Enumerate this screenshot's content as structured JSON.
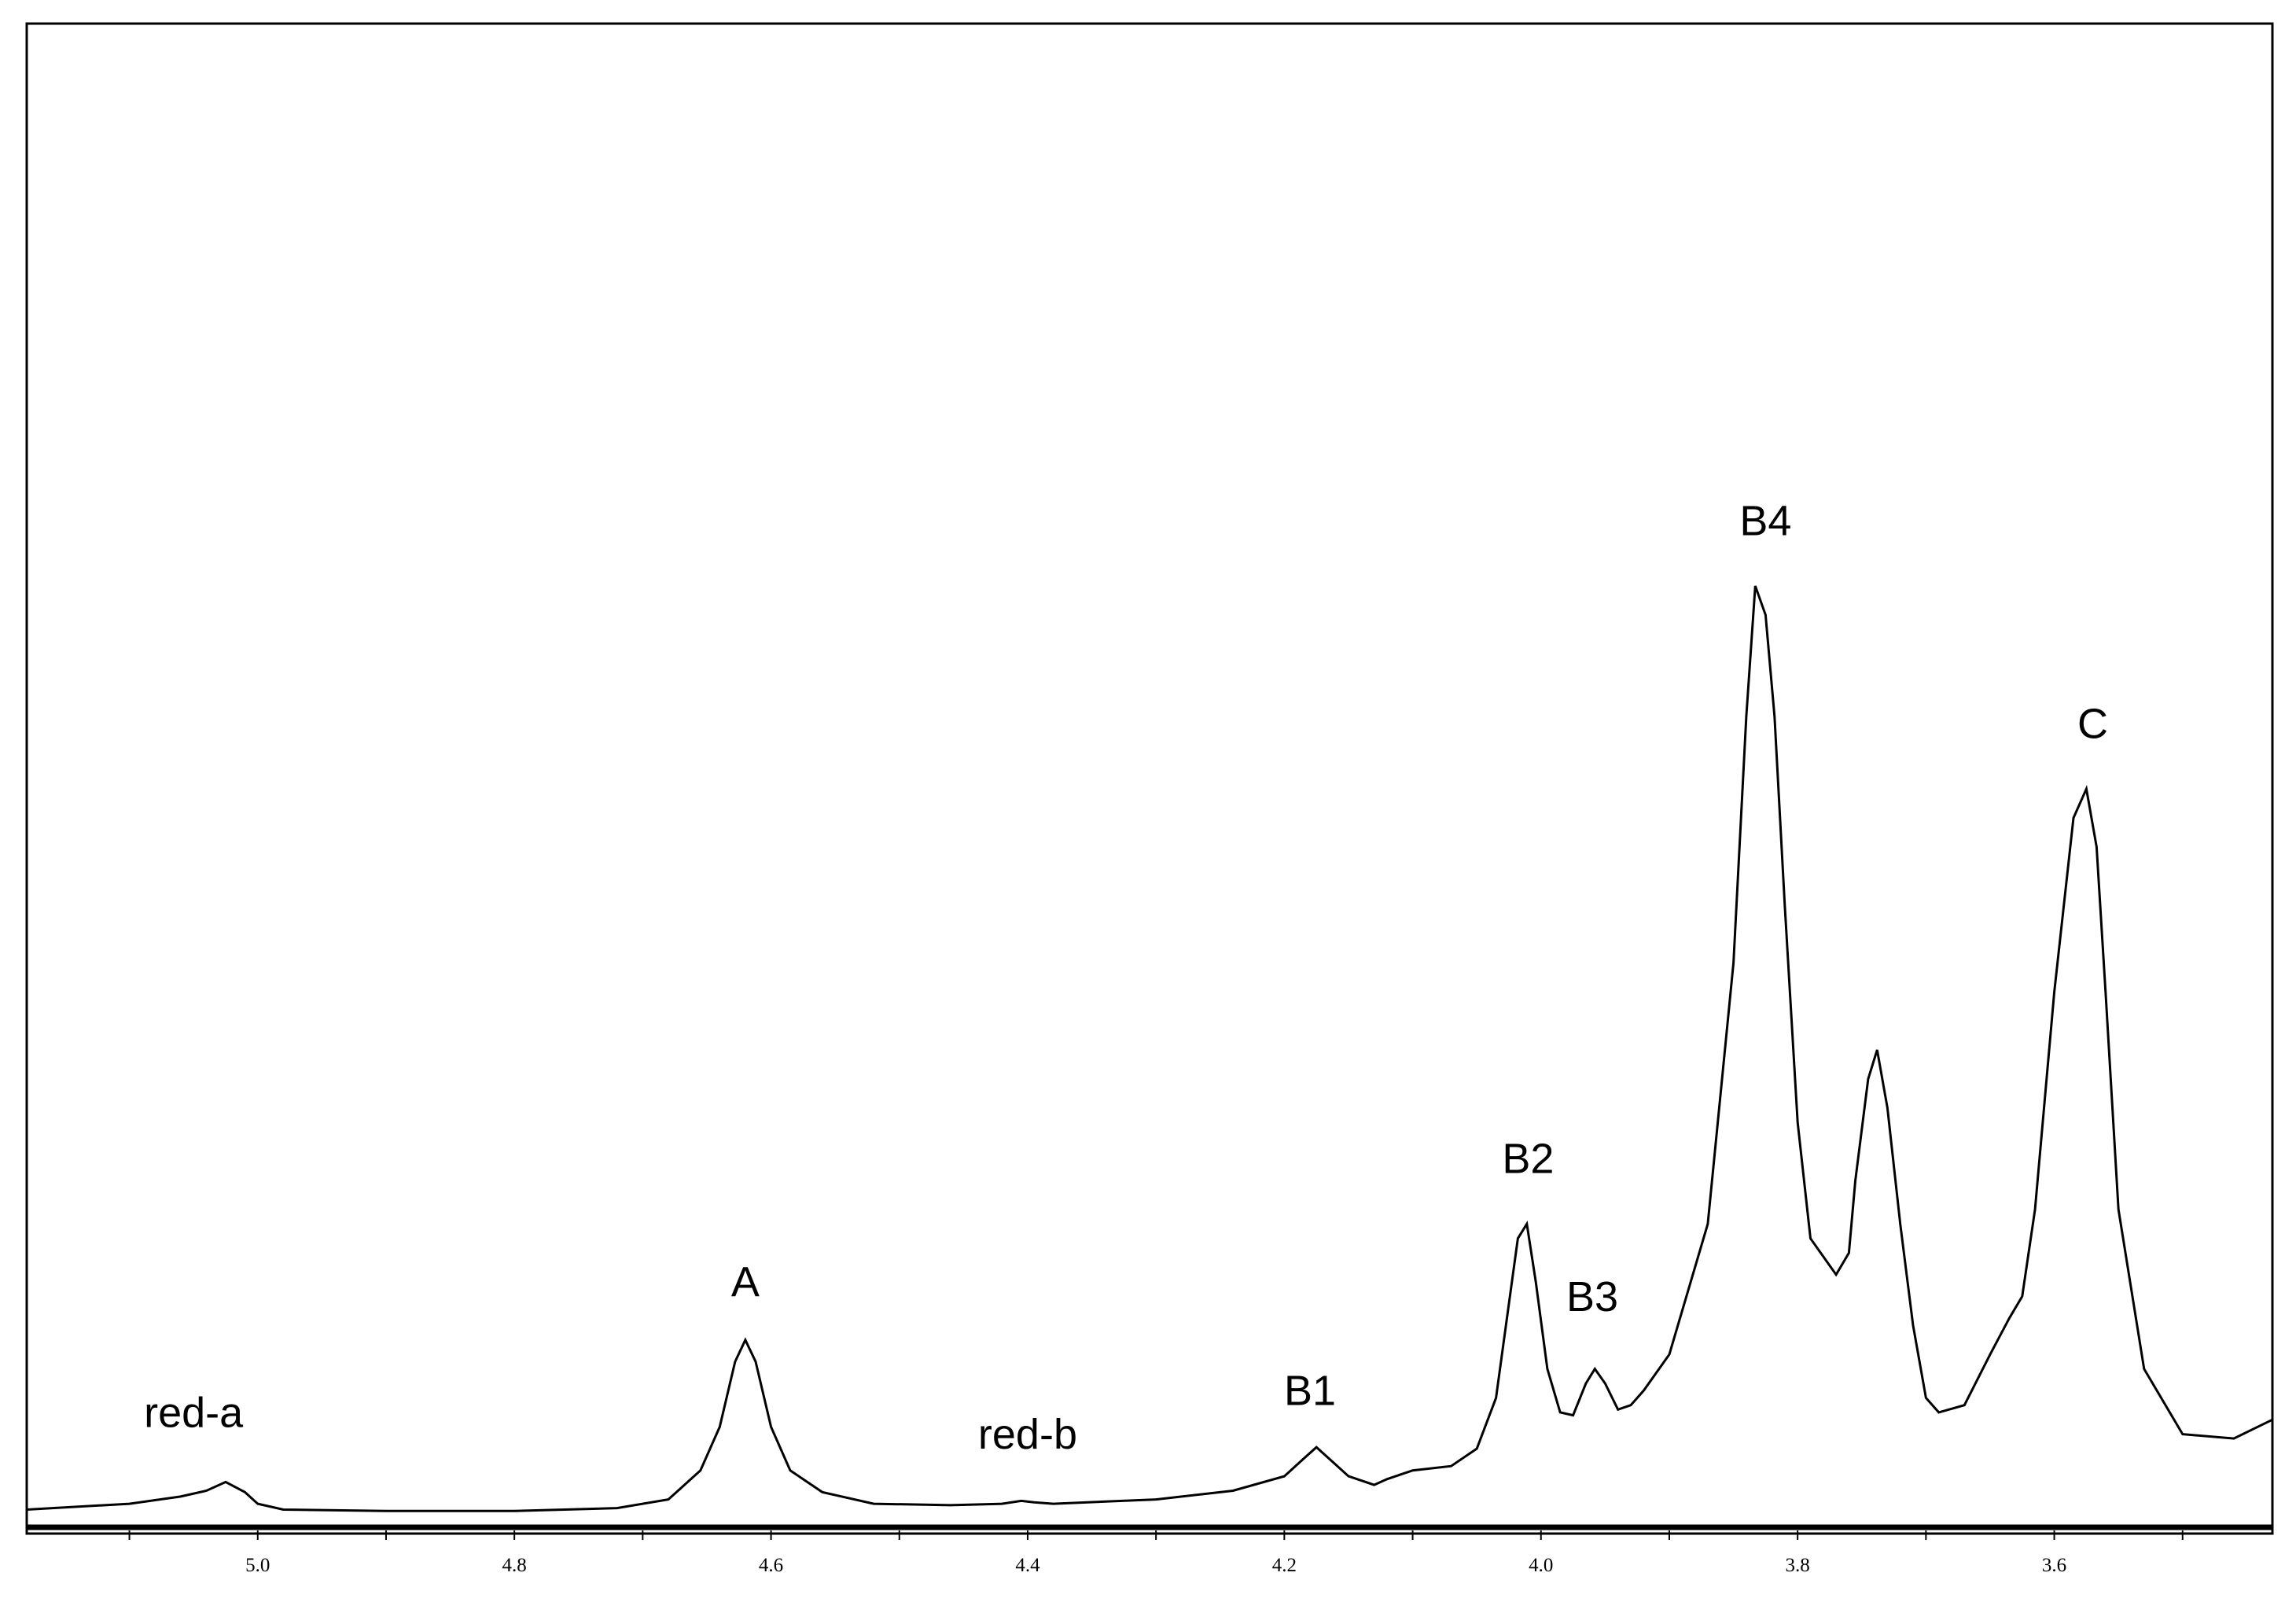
{
  "chart_data": {
    "type": "line",
    "xlabel": "",
    "ylabel": "",
    "x_reversed": true,
    "xlim": [
      5.18,
      3.43
    ],
    "ylim": [
      0,
      1
    ],
    "x_ticks": [
      "5.0",
      "4.8",
      "4.6",
      "4.4",
      "4.2",
      "4.0",
      "3.8",
      "3.6"
    ],
    "grid": false,
    "line_color": "#000000",
    "series": [
      {
        "x": [
          5.18,
          5.1,
          5.06,
          5.04,
          5.025,
          5.01,
          5.0,
          4.98,
          4.9,
          4.8,
          4.72,
          4.68,
          4.655,
          4.64,
          4.628,
          4.62,
          4.612,
          4.6,
          4.585,
          4.56,
          4.52,
          4.46,
          4.42,
          4.405,
          4.395,
          4.38,
          4.3,
          4.24,
          4.2,
          4.185,
          4.175,
          4.165,
          4.15,
          4.13,
          4.12,
          4.1,
          4.07,
          4.05,
          4.035,
          4.025,
          4.018,
          4.011,
          4.004,
          3.995,
          3.985,
          3.975,
          3.965,
          3.958,
          3.95,
          3.94,
          3.93,
          3.92,
          3.9,
          3.87,
          3.85,
          3.84,
          3.833,
          3.825,
          3.818,
          3.81,
          3.8,
          3.79,
          3.77,
          3.76,
          3.755,
          3.745,
          3.738,
          3.73,
          3.72,
          3.71,
          3.7,
          3.69,
          3.67,
          3.65,
          3.635,
          3.625,
          3.615,
          3.6,
          3.585,
          3.575,
          3.567,
          3.56,
          3.55,
          3.53,
          3.5,
          3.46,
          3.43
        ],
        "y": [
          0.003,
          0.007,
          0.012,
          0.016,
          0.022,
          0.015,
          0.007,
          0.003,
          0.002,
          0.002,
          0.004,
          0.01,
          0.03,
          0.06,
          0.105,
          0.12,
          0.105,
          0.06,
          0.03,
          0.015,
          0.007,
          0.006,
          0.007,
          0.009,
          0.008,
          0.007,
          0.01,
          0.016,
          0.026,
          0.038,
          0.046,
          0.038,
          0.026,
          0.02,
          0.024,
          0.03,
          0.033,
          0.045,
          0.08,
          0.145,
          0.19,
          0.2,
          0.16,
          0.1,
          0.07,
          0.068,
          0.09,
          0.1,
          0.09,
          0.072,
          0.075,
          0.085,
          0.11,
          0.2,
          0.38,
          0.55,
          0.64,
          0.62,
          0.55,
          0.42,
          0.27,
          0.19,
          0.165,
          0.18,
          0.23,
          0.3,
          0.32,
          0.28,
          0.2,
          0.13,
          0.08,
          0.07,
          0.075,
          0.11,
          0.135,
          0.15,
          0.21,
          0.36,
          0.48,
          0.5,
          0.46,
          0.36,
          0.21,
          0.1,
          0.055,
          0.052,
          0.065
        ]
      }
    ],
    "annotations": [
      {
        "text": "red-a",
        "x": 5.05,
        "y": 0.06
      },
      {
        "text": "A",
        "x": 4.62,
        "y": 0.15
      },
      {
        "text": "red-b",
        "x": 4.4,
        "y": 0.045
      },
      {
        "text": "B1",
        "x": 4.18,
        "y": 0.075
      },
      {
        "text": "B2",
        "x": 4.01,
        "y": 0.235
      },
      {
        "text": "B3",
        "x": 3.96,
        "y": 0.14
      },
      {
        "text": "B4",
        "x": 3.825,
        "y": 0.675
      },
      {
        "text": "C",
        "x": 3.57,
        "y": 0.535
      }
    ]
  }
}
